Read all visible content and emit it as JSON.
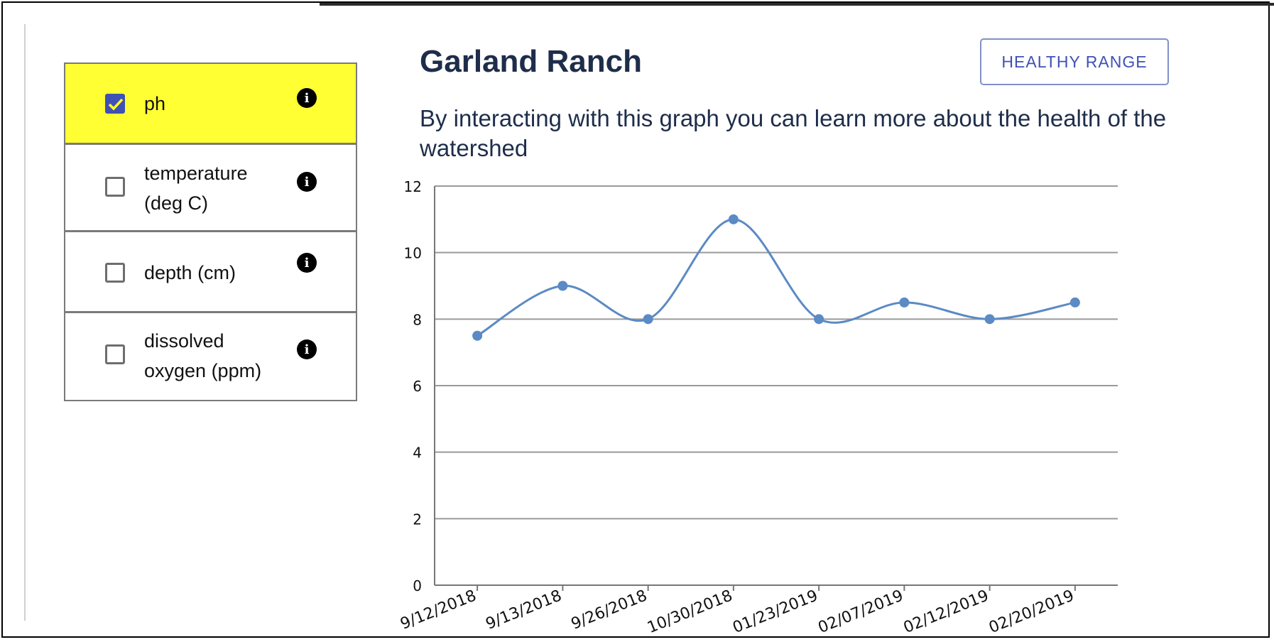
{
  "page": {
    "title": "Garland Ranch",
    "subtitle": "By interacting with this graph you can learn more about the health of the watershed",
    "healthy_range_label": "HEALTHY RANGE",
    "edge_text": "—— ——— ————"
  },
  "parameters": [
    {
      "label": "ph",
      "checked": true,
      "info_icon": "info-icon"
    },
    {
      "label": "temperature (deg C)",
      "checked": false,
      "info_icon": "info-icon"
    },
    {
      "label": "depth (cm)",
      "checked": false,
      "info_icon": "info-icon"
    },
    {
      "label": "dissolved oxygen (ppm)",
      "checked": false,
      "info_icon": "info-icon"
    }
  ],
  "colors": {
    "highlight": "#ffff33",
    "checkbox_checked": "#3f51b5",
    "checkmark": "#ffff33",
    "series": "#5b8ac4",
    "title": "#1e2d4a"
  },
  "chart_data": {
    "type": "line",
    "x": [
      "9/12/2018",
      "9/13/2018",
      "9/26/2018",
      "10/30/2018",
      "01/23/2019",
      "02/07/2019",
      "02/12/2019",
      "02/20/2019"
    ],
    "series": [
      {
        "values": [
          7.5,
          9,
          8,
          11,
          8,
          8.5,
          8,
          8.5
        ]
      }
    ],
    "ylim": [
      0,
      12
    ],
    "yticks": [
      0,
      2,
      4,
      6,
      8,
      10,
      12
    ],
    "grid": true,
    "curve": "smooth"
  }
}
